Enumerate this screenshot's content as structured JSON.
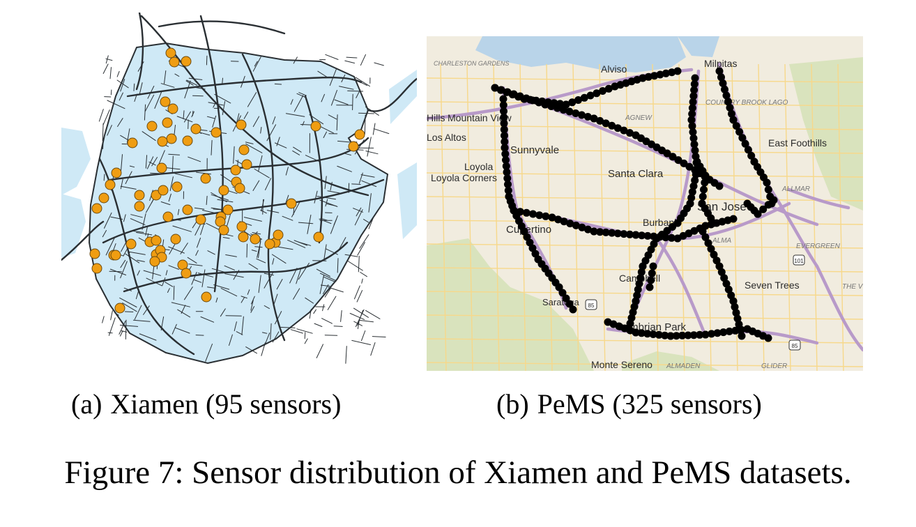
{
  "figure": {
    "caption": "Figure 7: Sensor distribution of Xiamen and PeMS datasets."
  },
  "panels": [
    {
      "tag": "(a)",
      "caption": "Xiamen (95 sensors)",
      "colors": {
        "land": "#cfe9f6",
        "road": "#2a2f33",
        "sensor": "#ef9d12",
        "sensor_outline": "#6b4a10"
      },
      "icons": [
        "sensor-marker-icon"
      ]
    },
    {
      "tag": "(b)",
      "caption": "PeMS (325 sensors)",
      "colors": {
        "base": "#f1ecdf",
        "water": "#b9d4e9",
        "park": "#d9e3bd",
        "freeway": "#b89ac9",
        "sensor": "#000000"
      },
      "place_labels": [
        "CHARLESTON GARDENS",
        "Alviso",
        "Milpitas",
        "Hills",
        "Mountain View",
        "Los Altos",
        "Sunnyvale",
        "AGNEW",
        "COUNTRY BROOK LAGO",
        "East Foothills",
        "Loyola",
        "Loyola Corners",
        "Santa Clara",
        "San Jose",
        "ALLMAR",
        "Cupertino",
        "Burbank",
        "ALMA",
        "EVERGREEN",
        "Campbell",
        "Seven Trees",
        "THE V",
        "Saratoga",
        "Cambrian Park",
        "Monte Sereno",
        "ALMADEN",
        "GLIDER"
      ],
      "shields": [
        "101",
        "85",
        "85"
      ]
    }
  ]
}
